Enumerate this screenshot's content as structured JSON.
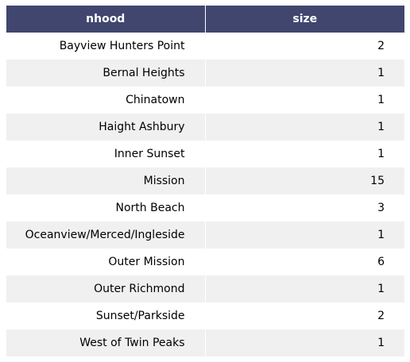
{
  "chart_data": {
    "type": "table",
    "columns": [
      "nhood",
      "size"
    ],
    "rows": [
      [
        "Bayview Hunters Point",
        "2"
      ],
      [
        "Bernal Heights",
        "1"
      ],
      [
        "Chinatown",
        "1"
      ],
      [
        "Haight Ashbury",
        "1"
      ],
      [
        "Inner Sunset",
        "1"
      ],
      [
        "Mission",
        "15"
      ],
      [
        "North Beach",
        "3"
      ],
      [
        "Oceanview/Merced/Ingleside",
        "1"
      ],
      [
        "Outer Mission",
        "6"
      ],
      [
        "Outer Richmond",
        "1"
      ],
      [
        "Sunset/Parkside",
        "2"
      ],
      [
        "West of Twin Peaks",
        "1"
      ]
    ],
    "header_color": "#40466e",
    "header_text_color": "#ffffff",
    "row_colors": [
      "#ffffff",
      "#f0f0f0"
    ]
  }
}
